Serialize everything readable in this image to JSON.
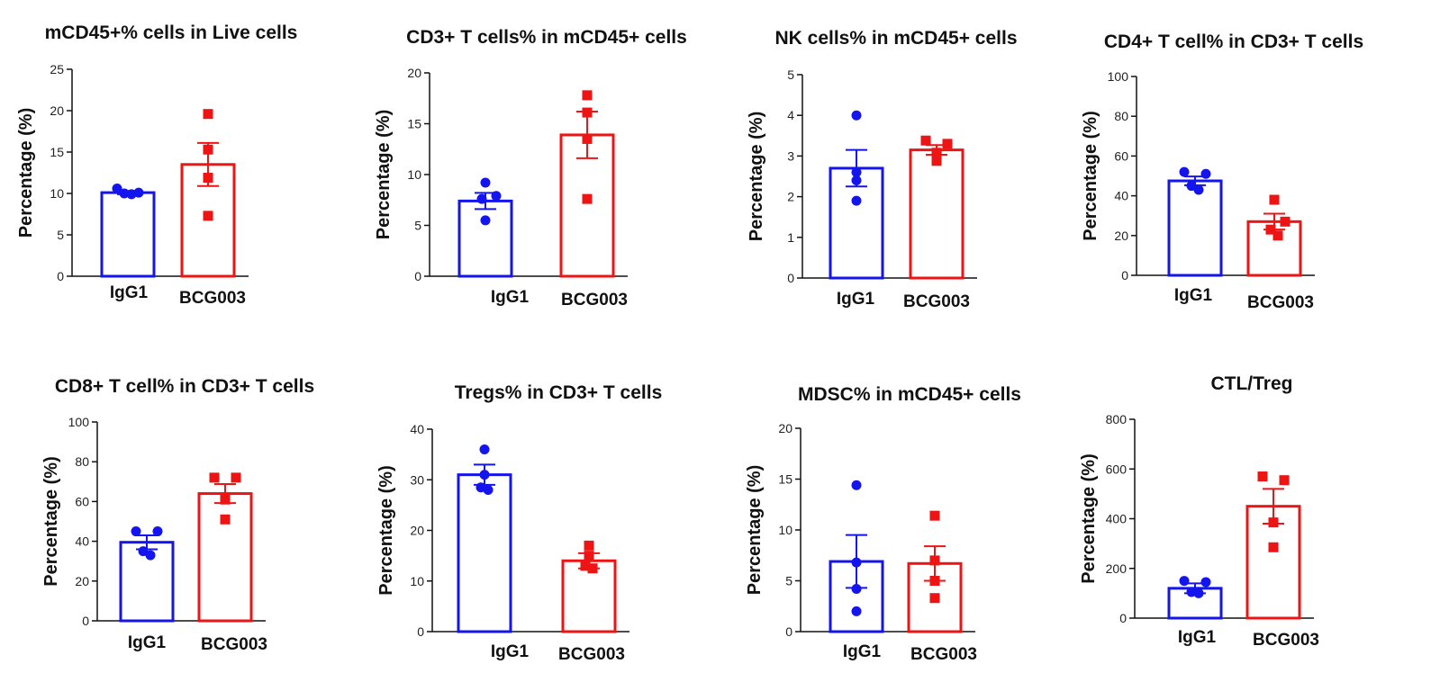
{
  "colors": {
    "IgG1": "#1414ee",
    "BCG003": "#ee1414",
    "axis": "#111111"
  },
  "chart_data": [
    {
      "type": "bar",
      "title": "mCD45+% cells in Live cells",
      "ylabel": "Percentage (%)",
      "categories": [
        "IgG1",
        "BCG003"
      ],
      "ylim": [
        0,
        25
      ],
      "yticks": [
        0,
        5,
        10,
        15,
        20,
        25
      ],
      "means": [
        10.1,
        13.5
      ],
      "sem": [
        0.2,
        2.6
      ],
      "points": [
        [
          10.6,
          10.1,
          10.0,
          9.9
        ],
        [
          19.6,
          15.3,
          11.9,
          7.3
        ]
      ]
    },
    {
      "type": "bar",
      "title": "CD3+ T cells% in mCD45+ cells",
      "ylabel": "Percentage (%)",
      "categories": [
        "IgG1",
        "BCG003"
      ],
      "ylim": [
        0,
        20
      ],
      "yticks": [
        0,
        5,
        10,
        15,
        20
      ],
      "means": [
        7.4,
        13.9
      ],
      "sem": [
        0.8,
        2.3
      ],
      "points": [
        [
          9.2,
          7.9,
          7.6,
          5.5
        ],
        [
          17.8,
          16.1,
          13.5,
          7.6
        ]
      ]
    },
    {
      "type": "bar",
      "title": "NK cells% in mCD45+ cells",
      "ylabel": "Percentage (%)",
      "categories": [
        "IgG1",
        "BCG003"
      ],
      "ylim": [
        0,
        5
      ],
      "yticks": [
        0,
        1,
        2,
        3,
        4,
        5
      ],
      "means": [
        2.7,
        3.15
      ],
      "sem": [
        0.45,
        0.12
      ],
      "points": [
        [
          4.0,
          2.6,
          2.4,
          1.9
        ],
        [
          3.38,
          3.3,
          3.08,
          2.88
        ]
      ]
    },
    {
      "type": "bar",
      "title": "CD4+ T cell% in CD3+ T cells",
      "ylabel": "Percentage (%)",
      "categories": [
        "IgG1",
        "BCG003"
      ],
      "ylim": [
        0,
        100
      ],
      "yticks": [
        0,
        20,
        40,
        60,
        80,
        100
      ],
      "means": [
        47.5,
        27.0
      ],
      "sem": [
        2.2,
        4.0
      ],
      "points": [
        [
          52,
          51,
          45,
          43
        ],
        [
          38,
          27,
          23,
          20
        ]
      ]
    },
    {
      "type": "bar",
      "title": "CD8+ T cell% in CD3+ T cells",
      "ylabel": "Percentage (%)",
      "categories": [
        "IgG1",
        "BCG003"
      ],
      "ylim": [
        0,
        100
      ],
      "yticks": [
        0,
        20,
        40,
        60,
        80,
        100
      ],
      "means": [
        39.5,
        64.0
      ],
      "sem": [
        3.5,
        4.8
      ],
      "points": [
        [
          45,
          45,
          35,
          33
        ],
        [
          72,
          72,
          61,
          51
        ]
      ]
    },
    {
      "type": "bar",
      "title": "Tregs% in CD3+ T cells",
      "ylabel": "Percentage (%)",
      "categories": [
        "IgG1",
        "BCG003"
      ],
      "ylim": [
        0,
        40
      ],
      "yticks": [
        0,
        10,
        20,
        30,
        40
      ],
      "means": [
        31.0,
        14.0
      ],
      "sem": [
        2.0,
        1.5
      ],
      "points": [
        [
          36,
          31,
          28.5,
          28
        ],
        [
          17,
          15,
          13,
          12.5
        ]
      ]
    },
    {
      "type": "bar",
      "title": "MDSC% in mCD45+ cells",
      "ylabel": "Percentage (%)",
      "categories": [
        "IgG1",
        "BCG003"
      ],
      "ylim": [
        0,
        20
      ],
      "yticks": [
        0,
        5,
        10,
        15,
        20
      ],
      "means": [
        6.9,
        6.7
      ],
      "sem": [
        2.6,
        1.7
      ],
      "points": [
        [
          14.4,
          6.8,
          4.2,
          2.0
        ],
        [
          11.4,
          7.0,
          5.0,
          3.3
        ]
      ]
    },
    {
      "type": "bar",
      "title": "CTL/Treg",
      "ylabel": "Percentage (%)",
      "categories": [
        "IgG1",
        "BCG003"
      ],
      "ylim": [
        0,
        800
      ],
      "yticks": [
        0,
        200,
        400,
        600,
        800
      ],
      "means": [
        120,
        450
      ],
      "sem": [
        20,
        70
      ],
      "points": [
        [
          150,
          145,
          105,
          100
        ],
        [
          570,
          555,
          385,
          285
        ]
      ]
    }
  ]
}
